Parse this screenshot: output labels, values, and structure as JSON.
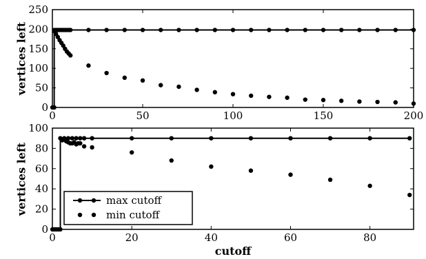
{
  "chart_data": [
    {
      "type": "line",
      "xlabel": "",
      "ylabel": "vertices left",
      "xlim": [
        0,
        200
      ],
      "ylim": [
        0,
        250
      ],
      "xticks": [
        0,
        50,
        100,
        150,
        200
      ],
      "yticks": [
        0,
        50,
        100,
        150,
        200,
        250
      ],
      "series": [
        {
          "style": "line-with-markers",
          "x": [
            0,
            1,
            1,
            2,
            3,
            4,
            5,
            6,
            7,
            8,
            9,
            10,
            20,
            30,
            40,
            50,
            60,
            70,
            80,
            90,
            100,
            110,
            120,
            130,
            140,
            150,
            160,
            170,
            180,
            190,
            200
          ],
          "y": [
            0,
            0,
            198,
            198,
            198,
            198,
            198,
            198,
            198,
            198,
            198,
            198,
            198,
            198,
            198,
            198,
            198,
            198,
            198,
            198,
            198,
            198,
            198,
            198,
            198,
            198,
            198,
            198,
            198,
            198,
            198
          ]
        },
        {
          "style": "markers",
          "x": [
            1,
            2,
            3,
            4,
            5,
            6,
            7,
            8,
            9,
            10,
            20,
            30,
            40,
            50,
            60,
            70,
            80,
            90,
            100,
            110,
            120,
            130,
            140,
            150,
            160,
            170,
            180,
            190,
            200
          ],
          "y": [
            195,
            188,
            180,
            172,
            165,
            158,
            150,
            143,
            138,
            133,
            107,
            88,
            76,
            69,
            57,
            53,
            45,
            39,
            34,
            30,
            27,
            25,
            20,
            19,
            17,
            15,
            14,
            13,
            10
          ]
        }
      ]
    },
    {
      "type": "line",
      "xlabel": "cutoff",
      "ylabel": "vertices left",
      "xlim": [
        0,
        91
      ],
      "ylim": [
        0,
        100
      ],
      "xticks": [
        0,
        20,
        40,
        60,
        80
      ],
      "yticks": [
        0,
        20,
        40,
        60,
        80,
        100
      ],
      "legend": {
        "position": "lower-left",
        "entries": [
          "max cutoff",
          "min cutoff"
        ]
      },
      "series": [
        {
          "name": "max cutoff",
          "style": "line-with-markers",
          "x": [
            0,
            1,
            2,
            2,
            3,
            4,
            5,
            6,
            7,
            8,
            10,
            20,
            30,
            40,
            50,
            60,
            70,
            80,
            90
          ],
          "y": [
            0,
            0,
            0,
            90,
            90,
            90,
            90,
            90,
            90,
            90,
            90,
            90,
            90,
            90,
            90,
            90,
            90,
            90,
            90
          ]
        },
        {
          "name": "min cutoff",
          "style": "markers",
          "x": [
            0.5,
            1.5,
            2.5,
            3.5,
            4,
            4.5,
            5,
            5.5,
            6,
            6.5,
            7,
            8,
            10,
            20,
            30,
            40,
            50,
            60,
            70,
            80,
            90
          ],
          "y": [
            0,
            0,
            88,
            87,
            86,
            85,
            85,
            86,
            84,
            85,
            85,
            82,
            81,
            76,
            68,
            62,
            58,
            54,
            49,
            43,
            34
          ]
        }
      ]
    }
  ]
}
